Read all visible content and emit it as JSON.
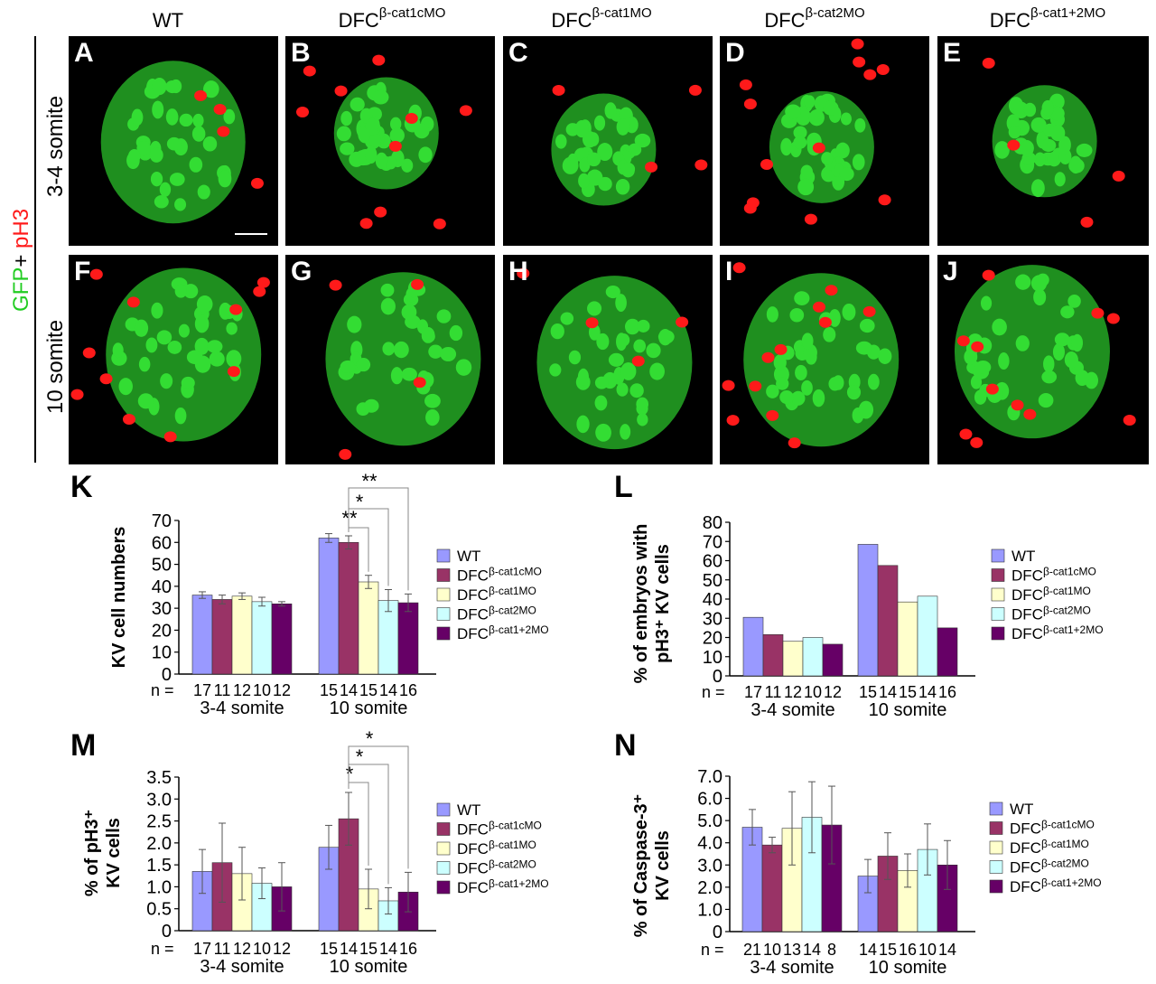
{
  "figure": {
    "columns": [
      {
        "base": "WT",
        "sup": ""
      },
      {
        "base": "DFC",
        "sup": "β-cat1cMO"
      },
      {
        "base": "DFC",
        "sup": "β-cat1MO"
      },
      {
        "base": "DFC",
        "sup": "β-cat2MO"
      },
      {
        "base": "DFC",
        "sup": "β-cat1+2MO"
      }
    ],
    "rows": [
      "3-4 somite",
      "10 somite"
    ],
    "stain_green": "GFP",
    "stain_plus": "+",
    "stain_red": "pH3",
    "panel_labels": [
      "A",
      "B",
      "C",
      "D",
      "E",
      "F",
      "G",
      "H",
      "I",
      "J"
    ],
    "chart_labels": [
      "K",
      "L",
      "M",
      "N"
    ]
  },
  "legend": [
    {
      "base": "WT",
      "sup": ""
    },
    {
      "base": "DFC",
      "sup": "β-cat1cMO"
    },
    {
      "base": "DFC",
      "sup": "β-cat1MO"
    },
    {
      "base": "DFC",
      "sup": "β-cat2MO"
    },
    {
      "base": "DFC",
      "sup": "β-cat1+2MO"
    }
  ],
  "colors": {
    "series": [
      "#9999ff",
      "#993366",
      "#ffffcc",
      "#ccffff",
      "#660066"
    ],
    "green": "#22cc22",
    "red": "#ff1a1a"
  },
  "chart_data": [
    {
      "type": "bar",
      "label": "K",
      "ylabel": "KV cell numbers",
      "ylim": [
        0,
        70
      ],
      "yticks": [
        "0",
        "10",
        "20",
        "30",
        "40",
        "50",
        "60",
        "70"
      ],
      "groups": [
        "3-4 somite",
        "10 somite"
      ],
      "n_prefix": "n =",
      "n": [
        [
          "17",
          "11",
          "12",
          "10",
          "12"
        ],
        [
          "15",
          "14",
          "15",
          "14",
          "16"
        ]
      ],
      "series": [
        {
          "name": "WT",
          "values": [
            36,
            62
          ],
          "err": [
            1.5,
            2
          ]
        },
        {
          "name": "DFC β-cat1cMO",
          "values": [
            34,
            60
          ],
          "err": [
            2,
            3
          ]
        },
        {
          "name": "DFC β-cat1MO",
          "values": [
            35.5,
            42
          ],
          "err": [
            1.5,
            3
          ]
        },
        {
          "name": "DFC β-cat2MO",
          "values": [
            33,
            33.5
          ],
          "err": [
            2,
            5
          ]
        },
        {
          "name": "DFC β-cat1+2MO",
          "values": [
            32,
            32.5
          ],
          "err": [
            1,
            4
          ]
        }
      ],
      "significance": [
        {
          "from": 1,
          "to": 2,
          "label": "**"
        },
        {
          "from": 1,
          "to": 3,
          "label": "*"
        },
        {
          "from": 1,
          "to": 4,
          "label": "**"
        }
      ]
    },
    {
      "type": "bar",
      "label": "L",
      "ylabel": "% of embryos with pH3⁺ KV cells",
      "ylabel_lines": [
        "% of embryos with",
        "pH3⁺ KV cells"
      ],
      "ylim": [
        0,
        80
      ],
      "yticks": [
        "0",
        "10",
        "20",
        "30",
        "40",
        "50",
        "60",
        "70",
        "80"
      ],
      "groups": [
        "3-4 somite",
        "10 somite"
      ],
      "n_prefix": "n =",
      "n": [
        [
          "17",
          "11",
          "12",
          "10",
          "12"
        ],
        [
          "15",
          "14",
          "15",
          "14",
          "16"
        ]
      ],
      "series": [
        {
          "name": "WT",
          "values": [
            30.5,
            68.5
          ]
        },
        {
          "name": "DFC β-cat1cMO",
          "values": [
            21.5,
            57.5
          ]
        },
        {
          "name": "DFC β-cat1MO",
          "values": [
            18,
            38.5
          ]
        },
        {
          "name": "DFC β-cat2MO",
          "values": [
            20,
            41.5
          ]
        },
        {
          "name": "DFC β-cat1+2MO",
          "values": [
            16.5,
            25
          ]
        }
      ],
      "significance": []
    },
    {
      "type": "bar",
      "label": "M",
      "ylabel": "% of pH3⁺ KV cells",
      "ylabel_lines": [
        "% of pH3⁺",
        "KV cells"
      ],
      "ylim": [
        0,
        3.5
      ],
      "yticks": [
        "0",
        "0.5",
        "1.0",
        "1.5",
        "2.0",
        "2.5",
        "3.0",
        "3.5"
      ],
      "groups": [
        "3-4 somite",
        "10 somite"
      ],
      "n_prefix": "n =",
      "n": [
        [
          "17",
          "11",
          "12",
          "10",
          "12"
        ],
        [
          "15",
          "14",
          "15",
          "14",
          "16"
        ]
      ],
      "series": [
        {
          "name": "WT",
          "values": [
            1.35,
            1.9
          ],
          "err": [
            0.5,
            0.5
          ]
        },
        {
          "name": "DFC β-cat1cMO",
          "values": [
            1.55,
            2.55
          ],
          "err": [
            0.9,
            0.6
          ]
        },
        {
          "name": "DFC β-cat1MO",
          "values": [
            1.3,
            0.95
          ],
          "err": [
            0.6,
            0.45
          ]
        },
        {
          "name": "DFC β-cat2MO",
          "values": [
            1.08,
            0.68
          ],
          "err": [
            0.35,
            0.3
          ]
        },
        {
          "name": "DFC β-cat1+2MO",
          "values": [
            1.0,
            0.88
          ],
          "err": [
            0.55,
            0.45
          ]
        }
      ],
      "significance": [
        {
          "from": 1,
          "to": 2,
          "label": "*"
        },
        {
          "from": 1,
          "to": 3,
          "label": "*"
        },
        {
          "from": 1,
          "to": 4,
          "label": "*"
        }
      ]
    },
    {
      "type": "bar",
      "label": "N",
      "ylabel": "% of Caspase-3⁺ KV cells",
      "ylabel_lines": [
        "% of Caspase-3⁺",
        "KV cells"
      ],
      "ylim": [
        0,
        7
      ],
      "yticks": [
        "0",
        "1.0",
        "2.0",
        "3.0",
        "4.0",
        "5.0",
        "6.0",
        "7.0"
      ],
      "groups": [
        "3-4 somite",
        "10 somite"
      ],
      "n_prefix": "n =",
      "n": [
        [
          "21",
          "10",
          "13",
          "14",
          "8"
        ],
        [
          "14",
          "15",
          "16",
          "10",
          "14"
        ]
      ],
      "series": [
        {
          "name": "WT",
          "values": [
            4.7,
            2.5
          ],
          "err": [
            0.8,
            0.75
          ]
        },
        {
          "name": "DFC β-cat1cMO",
          "values": [
            3.9,
            3.4
          ],
          "err": [
            0.35,
            1.05
          ]
        },
        {
          "name": "DFC β-cat1MO",
          "values": [
            4.65,
            2.75
          ],
          "err": [
            1.65,
            0.75
          ]
        },
        {
          "name": "DFC β-cat2MO",
          "values": [
            5.15,
            3.7
          ],
          "err": [
            1.6,
            1.15
          ]
        },
        {
          "name": "DFC β-cat1+2MO",
          "values": [
            4.8,
            3.0
          ],
          "err": [
            1.75,
            1.1
          ]
        }
      ],
      "significance": []
    }
  ]
}
